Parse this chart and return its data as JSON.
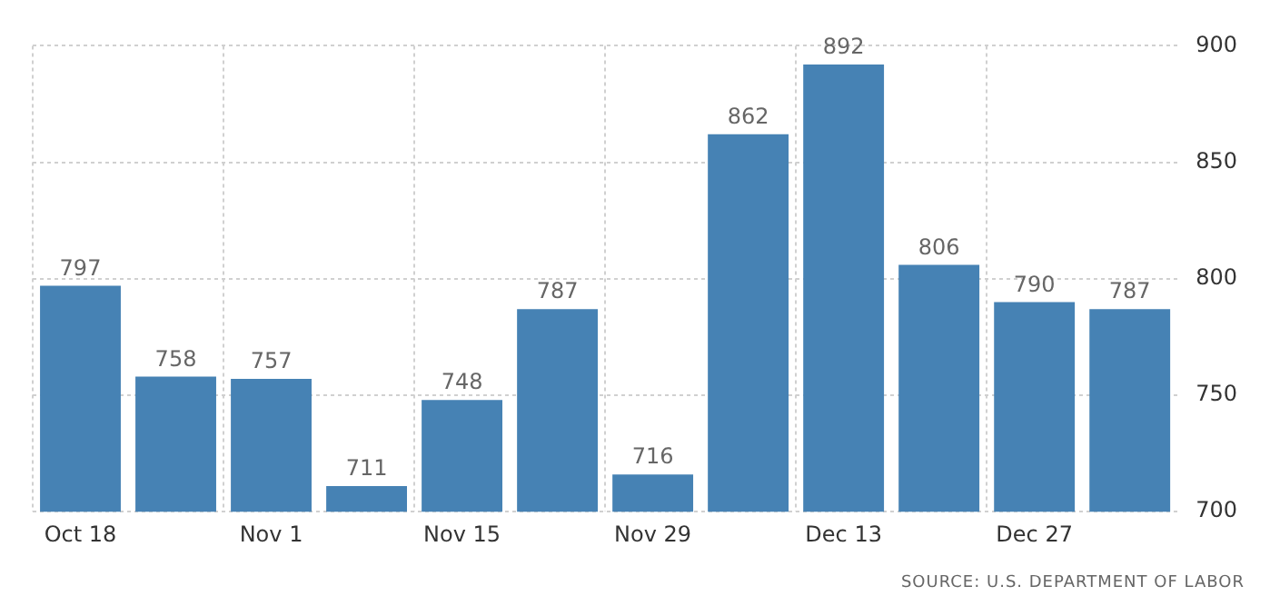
{
  "chart_data": {
    "type": "bar",
    "categories": [
      "Oct 18",
      null,
      "Nov 1",
      null,
      "Nov 15",
      null,
      "Nov 29",
      null,
      "Dec 13",
      null,
      "Dec 27",
      null
    ],
    "values": [
      797,
      758,
      757,
      711,
      748,
      787,
      716,
      862,
      892,
      806,
      790,
      787
    ],
    "color": "#4682b4",
    "ylim": [
      700,
      900
    ],
    "yticks": [
      700,
      750,
      800,
      850,
      900
    ],
    "grid": true,
    "data_labels": true,
    "legend": false,
    "annotations": [
      "SOURCE: U.S. DEPARTMENT OF LABOR"
    ]
  }
}
